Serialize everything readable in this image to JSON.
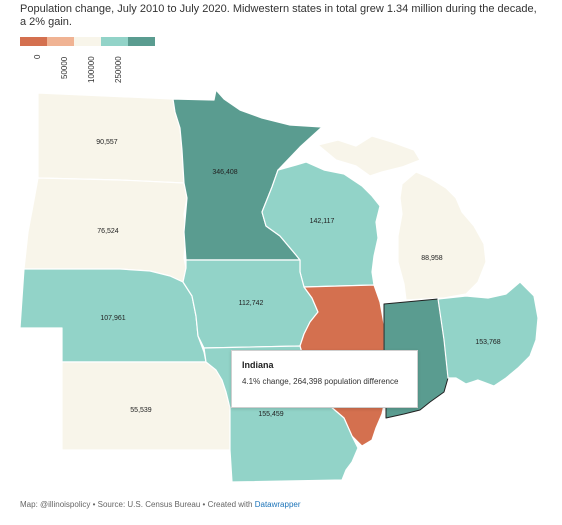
{
  "subtitle": "Population change, July 2010 to July 2020. Midwestern states in total grew 1.34 million during the decade, a 2% gain.",
  "legend": {
    "ticks": [
      "0",
      "50000",
      "100000",
      "250000"
    ],
    "colors": [
      "#d4704f",
      "#f0b393",
      "#f8f5ea",
      "#92d3c8",
      "#5a9c90"
    ]
  },
  "colors": {
    "neutral": "#f8f5ea",
    "light_teal": "#92d3c8",
    "dark_teal": "#5a9c90",
    "orange": "#d4704f",
    "outside": "#f6f6f6"
  },
  "states": [
    {
      "name": "North Dakota",
      "label": "90,557",
      "value": 90557,
      "color": "#f8f5ea"
    },
    {
      "name": "South Dakota",
      "label": "76,524",
      "value": 76524,
      "color": "#f8f5ea"
    },
    {
      "name": "Minnesota",
      "label": "346,408",
      "value": 346408,
      "color": "#5a9c90"
    },
    {
      "name": "Wisconsin",
      "label": "142,117",
      "value": 142117,
      "color": "#92d3c8"
    },
    {
      "name": "Michigan",
      "label": "88,958",
      "value": 88958,
      "color": "#f8f5ea"
    },
    {
      "name": "Nebraska",
      "label": "107,961",
      "value": 107961,
      "color": "#92d3c8"
    },
    {
      "name": "Iowa",
      "label": "112,742",
      "value": 112742,
      "color": "#92d3c8"
    },
    {
      "name": "Illinois",
      "label": "",
      "value": null,
      "color": "#d4704f"
    },
    {
      "name": "Indiana",
      "label": "",
      "value": 264398,
      "color": "#5a9c90"
    },
    {
      "name": "Ohio",
      "label": "153,768",
      "value": 153768,
      "color": "#92d3c8"
    },
    {
      "name": "Kansas",
      "label": "55,539",
      "value": 55539,
      "color": "#f8f5ea"
    },
    {
      "name": "Missouri",
      "label": "155,459",
      "value": 155459,
      "color": "#92d3c8"
    }
  ],
  "tooltip": {
    "title": "Indiana",
    "body": "4.1% change, 264,398 population difference"
  },
  "footer": {
    "text": "Map: @illinoispolicy • Source: U.S. Census Bureau • Created with ",
    "link": "Datawrapper"
  }
}
